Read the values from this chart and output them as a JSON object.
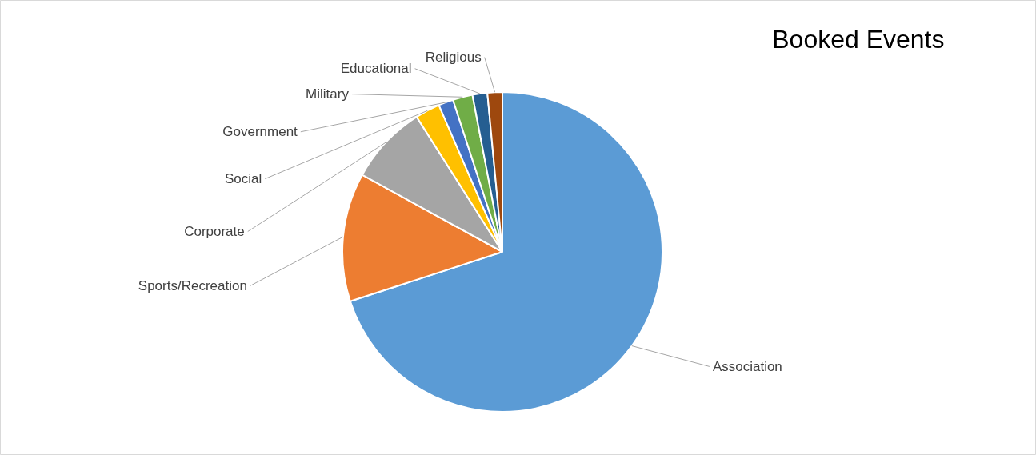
{
  "chart_data": {
    "type": "pie",
    "title": "Booked Events",
    "categories": [
      "Association",
      "Sports/Recreation",
      "Corporate",
      "Social",
      "Government",
      "Military",
      "Educational",
      "Religious"
    ],
    "values": [
      70,
      13,
      8,
      2.5,
      1.5,
      2,
      1.5,
      1.5
    ],
    "colors": [
      "#5b9bd5",
      "#ed7d31",
      "#a5a5a5",
      "#ffc000",
      "#4472c4",
      "#70ad47",
      "#255e91",
      "#9e480e"
    ]
  }
}
